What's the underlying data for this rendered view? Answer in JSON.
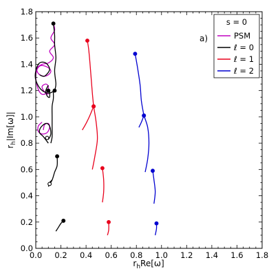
{
  "chart_data": {
    "type": "line",
    "xlabel": "r_h Re[ω]",
    "xlabel_parts": {
      "pre": "r",
      "sub": "h",
      "post": "Re[ω]"
    },
    "ylabel": "r_h |Im[ω]|",
    "ylabel_parts": {
      "pre": "r",
      "sub": "h",
      "post": "|Im[ω]|"
    },
    "xlim": [
      0.0,
      1.8
    ],
    "ylim": [
      0.0,
      1.8
    ],
    "xticks": [
      "0.0",
      "0.2",
      "0.4",
      "0.6",
      "0.8",
      "1.0",
      "1.2",
      "1.4",
      "1.6",
      "1.8"
    ],
    "yticks": [
      "0.0",
      "0.2",
      "0.4",
      "0.6",
      "0.8",
      "1.0",
      "1.2",
      "1.4",
      "1.6",
      "1.8"
    ],
    "annotation": "a)",
    "legend": {
      "title": "s = 0",
      "placement": "top-right",
      "entries": [
        {
          "label": "PSM",
          "color": "#c000c0"
        },
        {
          "label": "ℓ = 0",
          "color": "#000000"
        },
        {
          "label": "ℓ = 1",
          "color": "#e8001c"
        },
        {
          "label": "ℓ = 2",
          "color": "#0000d0"
        }
      ]
    },
    "series": [
      {
        "name": "PSM",
        "color": "#c000c0",
        "curves": [
          {
            "points": [
              [
                0.14,
                1.71
              ],
              [
                0.15,
                1.66
              ],
              [
                0.12,
                1.6
              ],
              [
                0.15,
                1.55
              ],
              [
                0.11,
                1.5
              ],
              [
                0.14,
                1.45
              ],
              [
                0.1,
                1.41
              ],
              [
                0.05,
                1.4
              ],
              [
                0.01,
                1.37
              ],
              [
                0.02,
                1.33
              ],
              [
                0.06,
                1.31
              ],
              [
                0.1,
                1.32
              ],
              [
                0.12,
                1.35
              ],
              [
                0.09,
                1.38
              ],
              [
                0.04,
                1.39
              ],
              [
                0.01,
                1.36
              ],
              [
                0.0,
                1.3
              ],
              [
                0.01,
                1.24
              ],
              [
                0.03,
                1.19
              ],
              [
                0.06,
                1.17
              ],
              [
                0.09,
                1.19
              ],
              [
                0.1,
                1.23
              ],
              [
                0.08,
                1.25
              ],
              [
                0.05,
                1.23
              ],
              [
                0.07,
                1.19
              ],
              [
                0.1,
                1.17
              ]
            ],
            "end": null,
            "end_fill": "none"
          },
          {
            "points": [
              [
                0.05,
                0.96
              ],
              [
                0.02,
                0.93
              ],
              [
                0.02,
                0.89
              ],
              [
                0.05,
                0.87
              ],
              [
                0.09,
                0.88
              ],
              [
                0.11,
                0.92
              ],
              [
                0.1,
                0.95
              ],
              [
                0.07,
                0.94
              ],
              [
                0.06,
                0.9
              ]
            ],
            "end": null,
            "end_fill": "none"
          }
        ]
      },
      {
        "name": "ℓ = 0",
        "color": "#000000",
        "curves": [
          {
            "points": [
              [
                0.15,
                1.2
              ],
              [
                0.16,
                1.25
              ],
              [
                0.15,
                1.35
              ],
              [
                0.16,
                1.45
              ],
              [
                0.15,
                1.55
              ],
              [
                0.15,
                1.62
              ],
              [
                0.14,
                1.71
              ]
            ],
            "end": [
              0.14,
              1.71
            ],
            "end_fill": "filled"
          },
          {
            "points": [
              [
                0.15,
                1.2
              ],
              [
                0.1,
                1.18
              ],
              [
                0.04,
                1.21
              ],
              [
                0.0,
                1.28
              ],
              [
                0.0,
                1.35
              ],
              [
                0.03,
                1.41
              ],
              [
                0.08,
                1.41
              ],
              [
                0.11,
                1.36
              ],
              [
                0.07,
                1.31
              ],
              [
                0.03,
                1.32
              ]
            ],
            "end": null,
            "end_fill": "none"
          },
          {
            "points": [
              [
                0.1,
                1.24
              ],
              [
                0.08,
                1.2
              ],
              [
                0.09,
                1.16
              ],
              [
                0.11,
                1.15
              ],
              [
                0.11,
                1.2
              ]
            ],
            "end": [
              0.1,
              1.2
            ],
            "end_fill": "filled"
          },
          {
            "points": [
              [
                0.1,
                0.8
              ],
              [
                0.06,
                0.85
              ],
              [
                0.03,
                0.88
              ],
              [
                0.04,
                0.92
              ],
              [
                0.08,
                0.95
              ],
              [
                0.11,
                0.93
              ],
              [
                0.12,
                0.87
              ],
              [
                0.1,
                0.83
              ],
              [
                0.09,
                0.84
              ]
            ],
            "end": [
              0.09,
              0.84
            ],
            "end_fill": "open"
          },
          {
            "points": [
              [
                0.12,
                0.8
              ],
              [
                0.13,
                0.85
              ],
              [
                0.13,
                0.93
              ],
              [
                0.13,
                1.0
              ],
              [
                0.13,
                1.08
              ],
              [
                0.14,
                1.14
              ],
              [
                0.14,
                1.2
              ],
              [
                0.15,
                1.2
              ]
            ],
            "end": [
              0.15,
              1.2
            ],
            "end_fill": "filled"
          },
          {
            "points": [
              [
                0.1,
                0.47
              ],
              [
                0.13,
                0.52
              ],
              [
                0.15,
                0.58
              ],
              [
                0.17,
                0.63
              ],
              [
                0.17,
                0.7
              ]
            ],
            "end": [
              0.17,
              0.7
            ],
            "end_fill": "filled"
          },
          {
            "points": [
              [
                0.13,
                0.52
              ],
              [
                0.11,
                0.5
              ],
              [
                0.1,
                0.48
              ]
            ],
            "end": [
              0.11,
              0.49
            ],
            "end_fill": "open"
          },
          {
            "points": [
              [
                0.16,
                0.13
              ],
              [
                0.18,
                0.16
              ],
              [
                0.2,
                0.19
              ],
              [
                0.22,
                0.21
              ]
            ],
            "end": [
              0.22,
              0.21
            ],
            "end_fill": "filled"
          }
        ]
      },
      {
        "name": "ℓ = 1",
        "color": "#e8001c",
        "curves": [
          {
            "points": [
              [
                0.37,
                0.9
              ],
              [
                0.4,
                0.95
              ],
              [
                0.43,
                1.01
              ],
              [
                0.46,
                1.08
              ]
            ],
            "end": [
              0.46,
              1.08
            ],
            "end_fill": "filled"
          },
          {
            "points": [
              [
                0.46,
                1.08
              ],
              [
                0.45,
                1.18
              ],
              [
                0.44,
                1.3
              ],
              [
                0.43,
                1.42
              ],
              [
                0.42,
                1.52
              ],
              [
                0.41,
                1.58
              ]
            ],
            "end": [
              0.41,
              1.58
            ],
            "end_fill": "filled"
          },
          {
            "points": [
              [
                0.45,
                0.6
              ],
              [
                0.47,
                0.7
              ],
              [
                0.49,
                0.83
              ],
              [
                0.48,
                0.96
              ],
              [
                0.46,
                1.08
              ]
            ],
            "end": [
              0.46,
              1.08
            ],
            "end_fill": "filled"
          },
          {
            "points": [
              [
                0.53,
                0.35
              ],
              [
                0.54,
                0.43
              ],
              [
                0.54,
                0.52
              ],
              [
                0.53,
                0.61
              ]
            ],
            "end": [
              0.53,
              0.61
            ],
            "end_fill": "filled"
          },
          {
            "points": [
              [
                0.57,
                0.1
              ],
              [
                0.58,
                0.14
              ],
              [
                0.58,
                0.2
              ]
            ],
            "end": [
              0.58,
              0.2
            ],
            "end_fill": "filled"
          }
        ]
      },
      {
        "name": "ℓ = 2",
        "color": "#0000d0",
        "curves": [
          {
            "points": [
              [
                0.82,
                0.92
              ],
              [
                0.84,
                0.96
              ],
              [
                0.86,
                1.01
              ]
            ],
            "end": [
              0.86,
              1.01
            ],
            "end_fill": "filled"
          },
          {
            "points": [
              [
                0.86,
                1.01
              ],
              [
                0.84,
                1.12
              ],
              [
                0.83,
                1.24
              ],
              [
                0.81,
                1.37
              ],
              [
                0.79,
                1.48
              ]
            ],
            "end": [
              0.79,
              1.48
            ],
            "end_fill": "filled"
          },
          {
            "points": [
              [
                0.87,
                0.58
              ],
              [
                0.89,
                0.68
              ],
              [
                0.9,
                0.8
              ],
              [
                0.89,
                0.92
              ],
              [
                0.86,
                1.01
              ]
            ],
            "end": [
              0.86,
              1.01
            ],
            "end_fill": "filled"
          },
          {
            "points": [
              [
                0.94,
                0.34
              ],
              [
                0.95,
                0.43
              ],
              [
                0.94,
                0.52
              ],
              [
                0.93,
                0.59
              ]
            ],
            "end": [
              0.93,
              0.59
            ],
            "end_fill": "filled"
          },
          {
            "points": [
              [
                0.95,
                0.1
              ],
              [
                0.96,
                0.15
              ],
              [
                0.96,
                0.19
              ]
            ],
            "end": [
              0.96,
              0.19
            ],
            "end_fill": "filled"
          }
        ]
      }
    ]
  }
}
